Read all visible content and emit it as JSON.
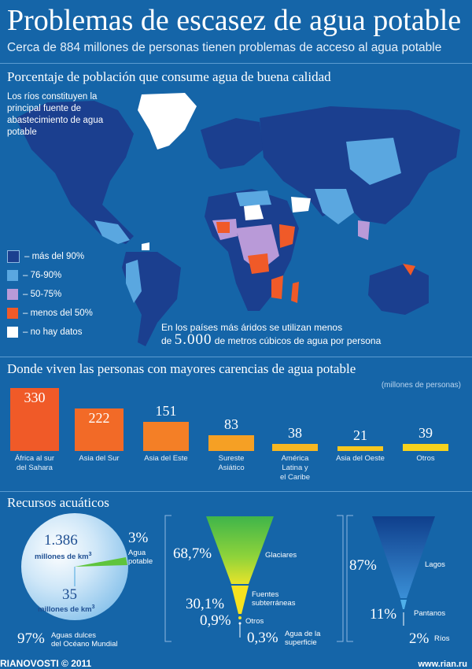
{
  "title": "Problemas de escasez de agua potable",
  "subtitle": "Cerca de 884 millones de personas tienen problemas de acceso al agua potable",
  "map": {
    "heading": "Porcentaje de población que consume agua de buena calidad",
    "note": "Los ríos constituyen la principal fuente de abastecimiento de agua potable",
    "legend": [
      {
        "label": "– más del 90%",
        "color": "#1b3f8f"
      },
      {
        "label": "– 76-90%",
        "color": "#5aa7e0"
      },
      {
        "label": "– 50-75%",
        "color": "#b99ad8"
      },
      {
        "label": "– menos del 50%",
        "color": "#f05a28"
      },
      {
        "label": "– no hay datos",
        "color": "#ffffff"
      }
    ],
    "arid_text_1": "En los países más áridos se utilizan menos",
    "arid_text_2_pre": "de",
    "arid_number": "5.000",
    "arid_text_2_post": "de metros cúbicos de agua por persona"
  },
  "chart_data": {
    "type": "bar",
    "title": "Donde viven las personas con mayores carencias de agua potable",
    "units": "(millones de personas)",
    "categories": [
      "África al sur del Sahara",
      "Asia del Sur",
      "Asia del Este",
      "Sureste Asiático",
      "América Latina y el Caribe",
      "Asia del Oeste",
      "Otros"
    ],
    "category_lines": [
      [
        "África al sur",
        "del Sahara"
      ],
      [
        "Asia del Sur"
      ],
      [
        "Asia del Este"
      ],
      [
        "Sureste",
        "Asiático"
      ],
      [
        "América",
        "Latina y",
        "el Caribe"
      ],
      [
        "Asia del Oeste"
      ],
      [
        "Otros"
      ]
    ],
    "values": [
      330,
      222,
      151,
      83,
      38,
      21,
      39
    ],
    "value_labels": [
      "330",
      "222",
      "151",
      "83",
      "38",
      "21",
      "39"
    ],
    "colors": [
      "#f05a28",
      "#f26a27",
      "#f47f26",
      "#f6a024",
      "#f7b722",
      "#f7c71f",
      "#f7d21d"
    ],
    "ylim": [
      0,
      330
    ]
  },
  "resources": {
    "heading": "Recursos acuáticos",
    "globe": {
      "total_value": "1.386",
      "total_unit": "millones de km",
      "fresh_value": "35",
      "fresh_unit": "millones de km",
      "sup": "3",
      "ocean_pct": "97%",
      "ocean_label_1": "Aguas dulces",
      "ocean_label_2": "del Océano Mundial",
      "potable_pct": "3%",
      "potable_label_1": "Agua",
      "potable_label_2": "potable"
    },
    "freshwater": [
      {
        "pct": "68,7%",
        "label": "Glaciares"
      },
      {
        "pct": "30,1%",
        "label": "Fuentes subterráneas"
      },
      {
        "pct": "0,9%",
        "label": "Otros"
      },
      {
        "pct": "0,3%",
        "label": "Agua de la superficie"
      }
    ],
    "freshwater_values": [
      68.7,
      30.1,
      0.9,
      0.3
    ],
    "surface": [
      {
        "pct": "87%",
        "label": "Lagos"
      },
      {
        "pct": "11%",
        "label": "Pantanos"
      },
      {
        "pct": "2%",
        "label": "Ríos"
      }
    ],
    "surface_values": [
      87,
      11,
      2
    ]
  },
  "footer": {
    "brand": "RIANOVOSTI",
    "copyright": "© 2011",
    "url": "www.rian.ru"
  }
}
